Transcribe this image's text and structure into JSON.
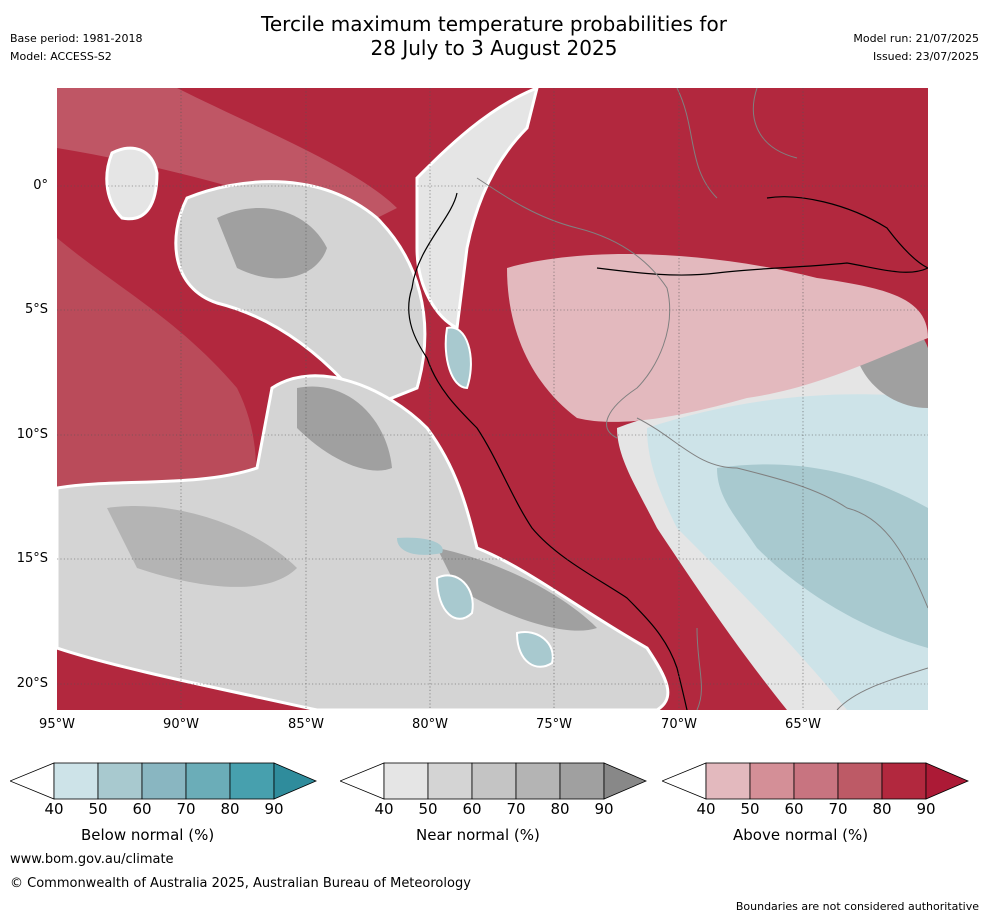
{
  "header": {
    "title_line1": "Tercile maximum temperature probabilities for",
    "title_line2": "28 July to 3 August 2025",
    "base_period": "Base period: 1981-2018",
    "model": "Model: ACCESS-S2",
    "model_run": "Model run: 21/07/2025",
    "issued": "Issued: 23/07/2025"
  },
  "map": {
    "lat_labels": [
      "0°",
      "5°S",
      "10°S",
      "15°S",
      "20°S"
    ],
    "lon_labels": [
      "95°W",
      "90°W",
      "85°W",
      "80°W",
      "75°W",
      "70°W",
      "65°W"
    ]
  },
  "colorbars": [
    {
      "label": "Below normal (%)",
      "ticks": [
        "40",
        "50",
        "60",
        "70",
        "80",
        "90"
      ],
      "colors": [
        "#ffffff",
        "#cde3e8",
        "#a8c9cf",
        "#89b6c1",
        "#6badb8",
        "#47a0ae",
        "#2f8c9c"
      ]
    },
    {
      "label": "Near normal (%)",
      "ticks": [
        "40",
        "50",
        "60",
        "70",
        "80",
        "90"
      ],
      "colors": [
        "#ffffff",
        "#e5e5e5",
        "#d4d4d4",
        "#c4c4c4",
        "#b4b4b4",
        "#a0a0a0",
        "#888888"
      ]
    },
    {
      "label": "Above normal (%)",
      "ticks": [
        "40",
        "50",
        "60",
        "70",
        "80",
        "90"
      ],
      "colors": [
        "#ffffff",
        "#e3b9be",
        "#d48f97",
        "#c87480",
        "#bd5a66",
        "#b2283e",
        "#ac1a36"
      ]
    }
  ],
  "footer": {
    "website": "www.bom.gov.au/climate",
    "copyright": "© Commonwealth of Australia 2025, Australian Bureau of Meteorology",
    "disclaimer": "Boundaries are not considered authoritative"
  }
}
